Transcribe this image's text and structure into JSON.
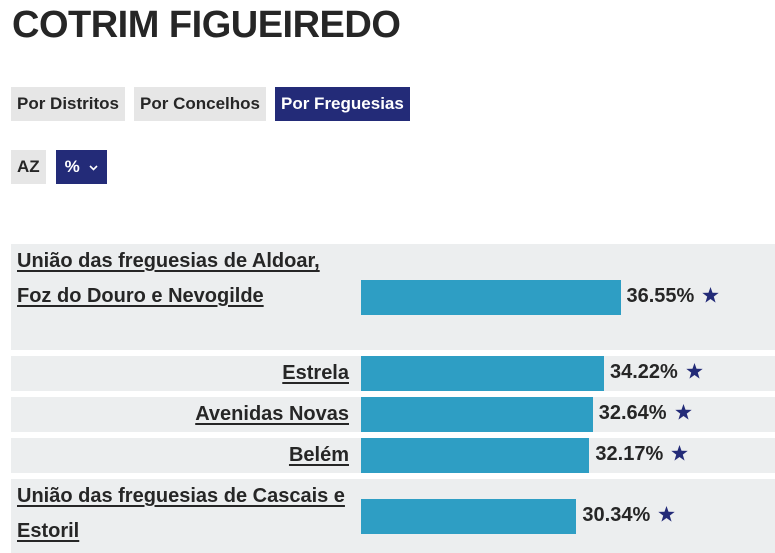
{
  "title": "COTRIM FIGUEIREDO",
  "tabs": [
    {
      "label": "Por Distritos",
      "active": false
    },
    {
      "label": "Por Concelhos",
      "active": false
    },
    {
      "label": "Por Freguesias",
      "active": true
    }
  ],
  "controls": {
    "sort_label": "AZ",
    "unit_label": "%"
  },
  "colors": {
    "bar": "#2e9ec4",
    "accent": "#232b78",
    "row_bg": "#eceeef"
  },
  "chart_data": {
    "type": "bar",
    "orientation": "horizontal",
    "categories": [
      "União das freguesias de Aldoar, Foz do Douro e Nevogilde",
      "Estrela",
      "Avenidas Novas",
      "Belém",
      "União das freguesias de Cascais e Estoril"
    ],
    "values": [
      36.55,
      34.22,
      32.64,
      32.17,
      30.34
    ],
    "value_labels": [
      "36.55%",
      "34.22%",
      "32.64%",
      "32.17%",
      "30.34%"
    ],
    "marker": "star-icon",
    "xlim": [
      0,
      55
    ]
  }
}
